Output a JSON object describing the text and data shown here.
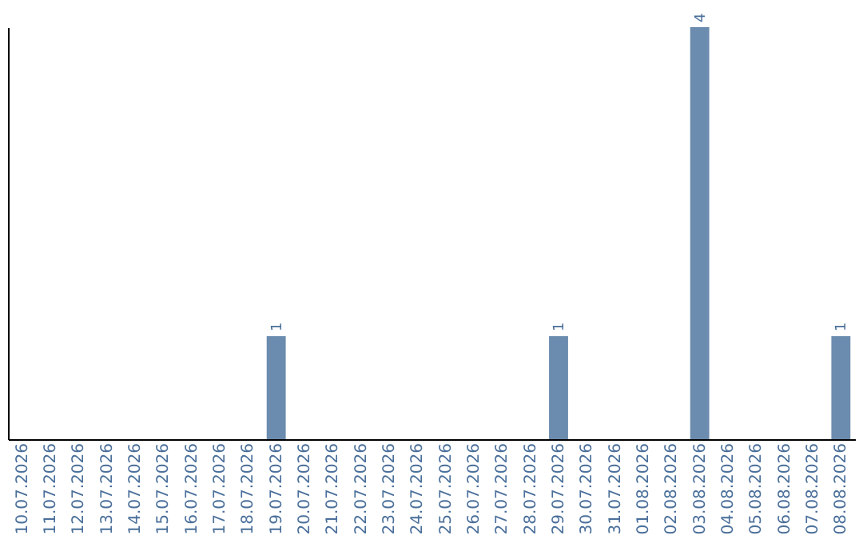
{
  "chart_data": {
    "type": "bar",
    "categories": [
      "10.07.2026",
      "11.07.2026",
      "12.07.2026",
      "13.07.2026",
      "14.07.2026",
      "15.07.2026",
      "16.07.2026",
      "17.07.2026",
      "18.07.2026",
      "19.07.2026",
      "20.07.2026",
      "21.07.2026",
      "22.07.2026",
      "23.07.2026",
      "24.07.2026",
      "25.07.2026",
      "26.07.2026",
      "27.07.2026",
      "28.07.2026",
      "29.07.2026",
      "30.07.2026",
      "31.07.2026",
      "01.08.2026",
      "02.08.2026",
      "03.08.2026",
      "04.08.2026",
      "05.08.2026",
      "06.08.2026",
      "07.08.2026",
      "08.08.2026"
    ],
    "values": [
      0,
      0,
      0,
      0,
      0,
      0,
      0,
      0,
      0,
      1,
      0,
      0,
      0,
      0,
      0,
      0,
      0,
      0,
      0,
      1,
      0,
      0,
      0,
      0,
      4,
      0,
      0,
      0,
      0,
      1
    ],
    "color": "#6b8cae",
    "value_labels": [
      null,
      null,
      null,
      null,
      null,
      null,
      null,
      null,
      null,
      "1",
      null,
      null,
      null,
      null,
      null,
      null,
      null,
      null,
      null,
      "1",
      null,
      null,
      null,
      null,
      "4",
      null,
      null,
      null,
      null,
      "1"
    ]
  }
}
